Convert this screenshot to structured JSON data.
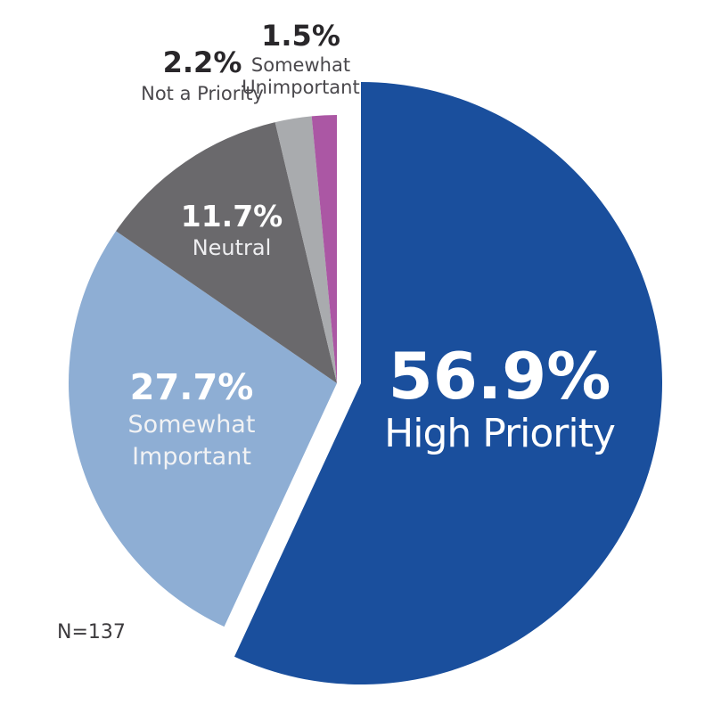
{
  "chart_data": {
    "type": "pie",
    "title": "",
    "direction": "clockwise",
    "start_angle_deg": 0,
    "sample_size_label": "N=137",
    "slices": [
      {
        "label": "High Priority",
        "value": 56.9,
        "display": "56.9%",
        "color": "#1a4f9d",
        "exploded": true
      },
      {
        "label": "Somewhat Important",
        "value": 27.7,
        "display": "27.7%",
        "color": "#8eaed4",
        "exploded": false
      },
      {
        "label": "Neutral",
        "value": 11.7,
        "display": "11.7%",
        "color": "#6a696c",
        "exploded": false
      },
      {
        "label": "Not a Priority",
        "value": 2.2,
        "display": "2.2%",
        "color": "#a9abae",
        "exploded": false
      },
      {
        "label": "Somewhat Unimportant",
        "value": 1.5,
        "display": "1.5%",
        "color": "#ab57a4",
        "exploded": false
      }
    ]
  }
}
